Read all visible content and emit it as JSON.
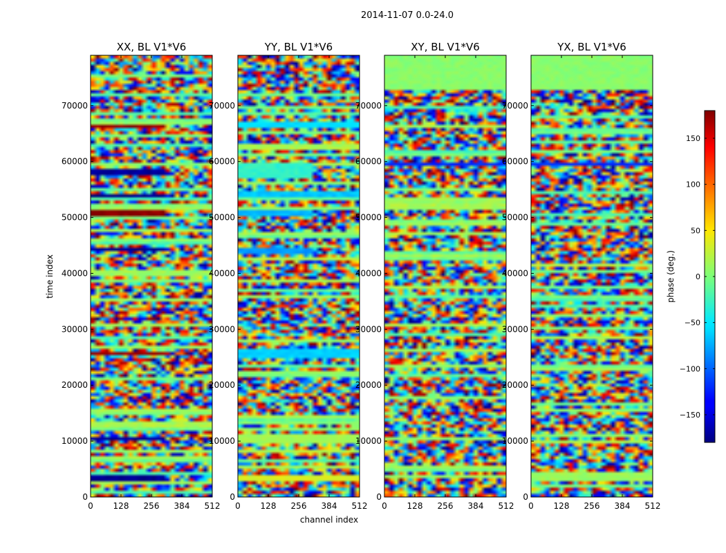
{
  "figure_title": "2014-11-07 0.0-24.0",
  "chart_data": {
    "type": "heatmap",
    "title": "2014-11-07 0.0-24.0",
    "xlabel": "channel index",
    "ylabel": "time index",
    "xlim": [
      0,
      512
    ],
    "ylim": [
      0,
      79000
    ],
    "x_ticks": [
      0,
      128,
      256,
      384,
      512
    ],
    "y_ticks": [
      0,
      10000,
      20000,
      30000,
      40000,
      50000,
      60000,
      70000
    ],
    "colormap": "jet",
    "panels": [
      {
        "title": "XX, BL V1*V6",
        "polarization": "XX",
        "bands": [
          {
            "t0": 3000,
            "t1": 4200,
            "phase": -175,
            "c1": 310
          },
          {
            "t0": 10200,
            "t1": 11000,
            "phase": -170,
            "c1": 320
          },
          {
            "t0": 25500,
            "t1": 26200,
            "phase": 170,
            "c1": 320
          },
          {
            "t0": 43800,
            "t1": 44800,
            "phase": -172,
            "c1": 320
          },
          {
            "t0": 50500,
            "t1": 51400,
            "phase": 175,
            "c1": 320
          },
          {
            "t0": 53600,
            "t1": 54400,
            "phase": -175,
            "c1": 320
          },
          {
            "t0": 57800,
            "t1": 58800,
            "phase": -170,
            "c1": 320
          },
          {
            "t0": 66200,
            "t1": 66800,
            "phase": 172,
            "c1": 320
          }
        ]
      },
      {
        "title": "YY, BL V1*V6",
        "polarization": "YY",
        "bands": [
          {
            "t0": 2800,
            "t1": 4200,
            "phase": 35,
            "c1": 512
          },
          {
            "t0": 9800,
            "t1": 11200,
            "phase": 15,
            "c1": 512
          },
          {
            "t0": 25000,
            "t1": 26500,
            "phase": -60,
            "c1": 512
          },
          {
            "t0": 43500,
            "t1": 44600,
            "phase": -80,
            "c1": 320
          },
          {
            "t0": 50500,
            "t1": 51500,
            "phase": -70,
            "c1": 320
          },
          {
            "t0": 53500,
            "t1": 54500,
            "phase": -65,
            "c1": 512
          },
          {
            "t0": 57000,
            "t1": 59800,
            "phase": -30,
            "c1": 320
          },
          {
            "t0": 65800,
            "t1": 67000,
            "phase": -55,
            "c1": 512
          }
        ]
      },
      {
        "title": "XY, BL V1*V6",
        "polarization": "XY",
        "bands": [
          {
            "t0": 3200,
            "t1": 4000,
            "phase": 10,
            "c1": 512
          },
          {
            "t0": 59400,
            "t1": 59900,
            "phase": -120,
            "c1": 512
          },
          {
            "t0": 73000,
            "t1": 79000,
            "phase": 5,
            "c1": 512
          }
        ]
      },
      {
        "title": "YX, BL V1*V6",
        "polarization": "YX",
        "bands": [
          {
            "t0": 3200,
            "t1": 4000,
            "phase": 10,
            "c1": 512
          },
          {
            "t0": 59400,
            "t1": 59900,
            "phase": -120,
            "c1": 512
          },
          {
            "t0": 73000,
            "t1": 79000,
            "phase": 5,
            "c1": 512
          }
        ]
      }
    ],
    "colorbar": {
      "label": "phase (deg.)",
      "vmin": -180,
      "vmax": 180,
      "ticks": [
        150,
        100,
        50,
        0,
        -50,
        -100,
        -150
      ],
      "tick_labels": [
        "150",
        "100",
        "50",
        "0",
        "−50",
        "−100",
        "−150"
      ]
    }
  }
}
